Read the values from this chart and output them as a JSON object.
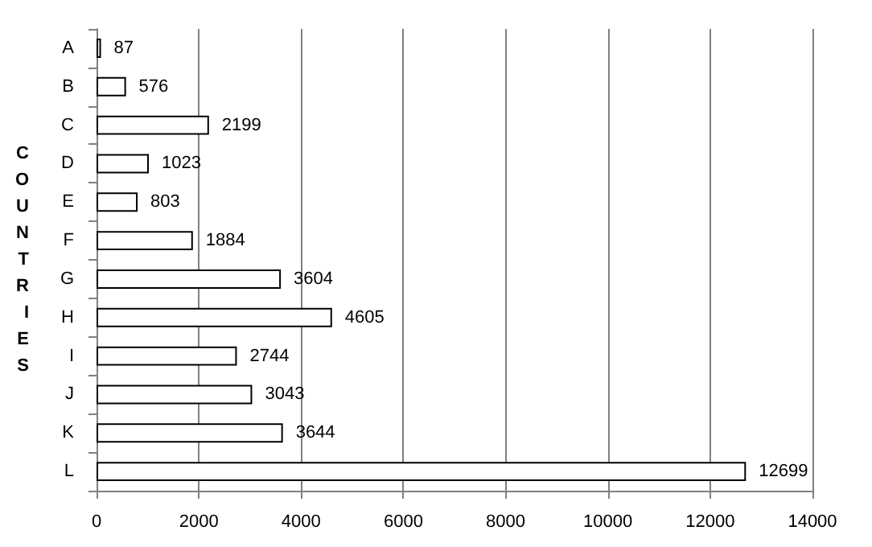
{
  "chart_data": {
    "type": "bar",
    "orientation": "horizontal",
    "ylabel": "COUNTRIES",
    "categories": [
      "A",
      "B",
      "C",
      "D",
      "E",
      "F",
      "G",
      "H",
      "I",
      "J",
      "K",
      "L"
    ],
    "values": [
      87,
      576,
      2199,
      1023,
      803,
      1884,
      3604,
      4605,
      2744,
      3043,
      3644,
      12699
    ],
    "color": "#ffffff",
    "xlim": [
      0,
      14000
    ],
    "xticks": [
      0,
      2000,
      4000,
      6000,
      8000,
      10000,
      12000,
      14000
    ],
    "grid": "x",
    "data_labels": true
  }
}
